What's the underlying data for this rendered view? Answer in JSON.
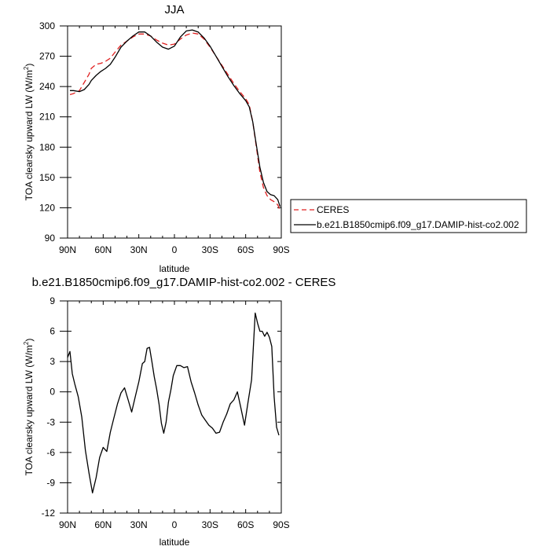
{
  "chart_data": [
    {
      "type": "line",
      "title": "JJA",
      "xlabel": "latitude",
      "ylabel": "TOA clearsky upward LW (W/m",
      "ylabel_sup": "2",
      "ylabel_end": ")",
      "xlim": [
        90,
        -90
      ],
      "ylim": [
        90,
        300
      ],
      "xticks": [
        90,
        60,
        30,
        0,
        -30,
        -60,
        -90
      ],
      "xtick_labels": [
        "90N",
        "60N",
        "30N",
        "0",
        "30S",
        "60S",
        "90S"
      ],
      "yticks": [
        90,
        120,
        150,
        180,
        210,
        240,
        270,
        300
      ],
      "ytick_labels": [
        "90",
        "120",
        "150",
        "180",
        "210",
        "240",
        "270",
        "300"
      ],
      "legend": "outside-right",
      "series": [
        {
          "name": "CERES",
          "color": "#e02020",
          "dash": "dashed",
          "x": [
            88,
            85,
            80,
            76,
            72,
            70,
            66,
            62,
            58,
            54,
            50,
            45,
            40,
            35,
            30,
            25,
            20,
            15,
            10,
            5,
            0,
            -5,
            -10,
            -15,
            -20,
            -25,
            -30,
            -35,
            -40,
            -45,
            -50,
            -55,
            -60,
            -63,
            -66,
            -69,
            -72,
            -75,
            -78,
            -81,
            -84,
            -87,
            -89
          ],
          "y": [
            232,
            233,
            236,
            244,
            252,
            258,
            262,
            263,
            265,
            268,
            274,
            281,
            285,
            289,
            292,
            292,
            290,
            286,
            283,
            281,
            282,
            287,
            291,
            293,
            292,
            287,
            279,
            270,
            261,
            252,
            243,
            235,
            228,
            222,
            205,
            180,
            155,
            140,
            132,
            128,
            126,
            123,
            117
          ]
        },
        {
          "name": "b.e21.B1850cmip6.f09_g17.DAMIP-hist-co2.002",
          "color": "#000000",
          "dash": "solid",
          "x": [
            88,
            85,
            80,
            76,
            72,
            70,
            66,
            62,
            58,
            54,
            50,
            45,
            40,
            35,
            30,
            25,
            20,
            15,
            10,
            5,
            0,
            -5,
            -10,
            -15,
            -20,
            -25,
            -30,
            -35,
            -40,
            -45,
            -50,
            -55,
            -60,
            -63,
            -66,
            -69,
            -72,
            -75,
            -78,
            -81,
            -84,
            -87,
            -89
          ],
          "y": [
            236,
            236,
            235,
            237,
            242,
            246,
            251,
            255,
            258,
            262,
            269,
            279,
            285,
            290,
            294,
            294,
            290,
            284,
            279,
            277,
            280,
            289,
            295,
            296,
            294,
            288,
            280,
            270,
            260,
            250,
            241,
            233,
            226,
            220,
            205,
            182,
            160,
            145,
            136,
            133,
            132,
            128,
            121
          ]
        }
      ]
    },
    {
      "type": "line",
      "title": "b.e21.B1850cmip6.f09_g17.DAMIP-hist-co2.002 - CERES",
      "xlabel": "latitude",
      "ylabel": "TOA clearsky upward LW (W/m",
      "ylabel_sup": "2",
      "ylabel_end": ")",
      "xlim": [
        90,
        -90
      ],
      "ylim": [
        -12,
        9
      ],
      "xticks": [
        90,
        60,
        30,
        0,
        -30,
        -60,
        -90
      ],
      "xtick_labels": [
        "90N",
        "60N",
        "30N",
        "0",
        "30S",
        "60S",
        "90S"
      ],
      "yticks": [
        -12,
        -9,
        -6,
        -3,
        0,
        3,
        6,
        9
      ],
      "ytick_labels": [
        "-12",
        "-9",
        "-6",
        "-3",
        "0",
        "3",
        "6",
        "9"
      ],
      "series": [
        {
          "name": "",
          "color": "#000000",
          "dash": "solid",
          "x": [
            90,
            88,
            86,
            84,
            81,
            78,
            75,
            72,
            69,
            66,
            63,
            60,
            57,
            54,
            51,
            48,
            45,
            42,
            39,
            36,
            33,
            30,
            27,
            25,
            23,
            21,
            19,
            17,
            15,
            13,
            11,
            9,
            7,
            5,
            3,
            1,
            -2,
            -5,
            -8,
            -11,
            -14,
            -17,
            -20,
            -23,
            -26,
            -29,
            -32,
            -35,
            -38,
            -41,
            -44,
            -47,
            -50,
            -53,
            -56,
            -59,
            -62,
            -65,
            -68,
            -70,
            -72,
            -74,
            -76,
            -78,
            -80,
            -82,
            -84,
            -86,
            -88
          ],
          "y": [
            3.4,
            4.0,
            1.8,
            0.8,
            -0.5,
            -2.5,
            -5.8,
            -8.0,
            -10.0,
            -8.5,
            -6.5,
            -5.5,
            -5.9,
            -4.0,
            -2.6,
            -1.2,
            -0.1,
            0.4,
            -0.8,
            -2.0,
            -0.5,
            1.0,
            2.8,
            3.0,
            4.3,
            4.4,
            3.0,
            1.5,
            0.3,
            -1.2,
            -3.1,
            -4.1,
            -3.0,
            -1.0,
            0.2,
            1.6,
            2.6,
            2.6,
            2.4,
            2.5,
            1.0,
            -0.1,
            -1.3,
            -2.3,
            -2.8,
            -3.3,
            -3.6,
            -4.1,
            -4.0,
            -3.0,
            -2.2,
            -1.2,
            -0.8,
            0.0,
            -1.6,
            -3.3,
            -1.0,
            1.2,
            7.8,
            6.8,
            6.0,
            6.0,
            5.5,
            5.9,
            5.4,
            4.5,
            -0.5,
            -3.5,
            -4.3
          ]
        }
      ]
    }
  ]
}
